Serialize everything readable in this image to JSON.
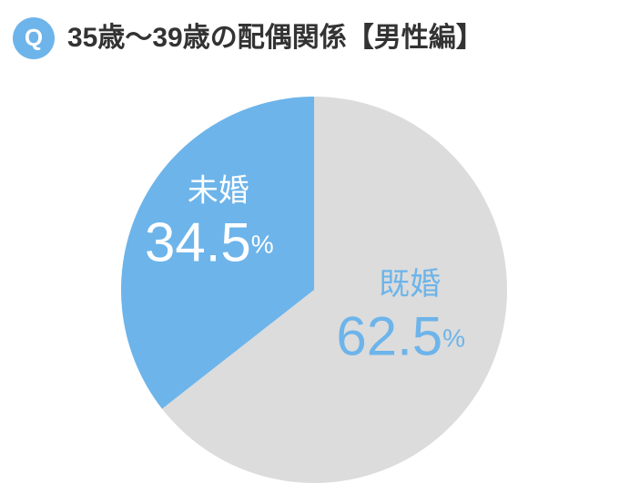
{
  "chart_data": {
    "type": "pie",
    "badge": "Q",
    "title": "35歳～39歳の配偶関係【男性編】",
    "categories": [
      "既婚",
      "未婚"
    ],
    "values": [
      62.5,
      34.5
    ],
    "unit": "%",
    "colors": [
      "#dcdcdc",
      "#6db4ea"
    ],
    "label_colors": [
      "#6db4ea",
      "#ffffff"
    ]
  }
}
